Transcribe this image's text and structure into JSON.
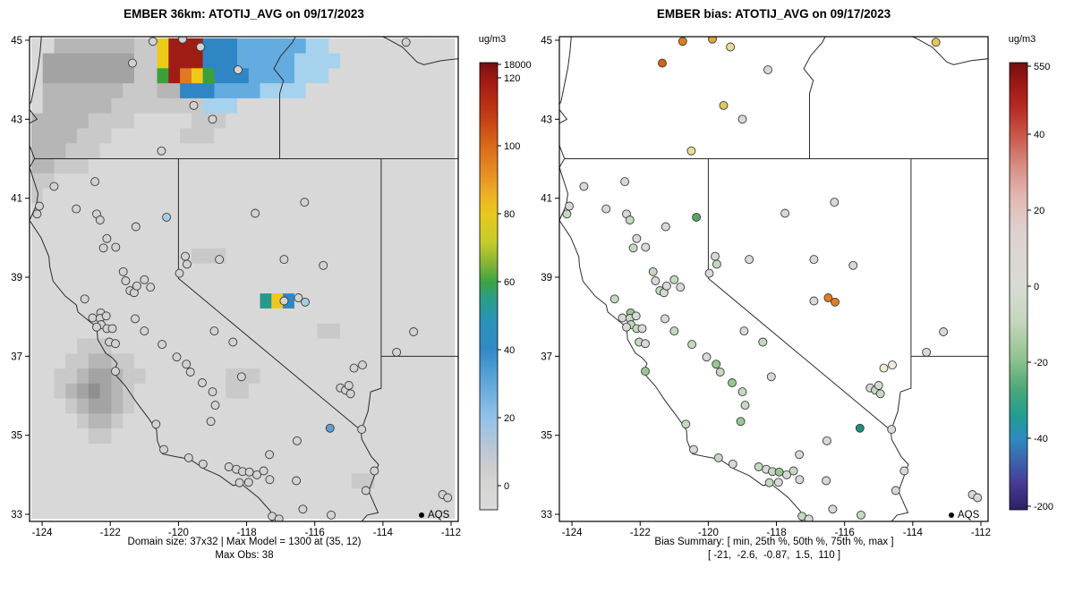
{
  "left": {
    "title": "EMBER 36km: ATOTIJ_AVG on 09/17/2023",
    "caption1": "Domain size: 37x32 | Max Model = 1300 at (35, 12)",
    "caption2": "Max Obs: 38",
    "colorbar_label": "ug/m3",
    "legend_label": "AQS"
  },
  "right": {
    "title": "EMBER bias: ATOTIJ_AVG on 09/17/2023",
    "caption1": "Bias Summary: [ min, 25th %, 50th %, 75th %, max ]",
    "caption2": "[ -21,  -2.6,  -0.87,  1.5,  110 ]",
    "colorbar_label": "ug/m3",
    "legend_label": "AQS"
  },
  "point_colors": {
    "g0": "#d8d8d8",
    "gn1": "#c5d9c0",
    "gn2": "#98c794",
    "gn3": "#55a56b",
    "gn4": "#1f8f80",
    "y0": "#edeada",
    "y1": "#e7dc96",
    "y2": "#e2c758",
    "o2": "#e2a243",
    "o3": "#df7f22",
    "o4": "#cd6512",
    "lb": "#a9cde6",
    "lB": "#5f9fcb"
  },
  "sites": [
    [
      -120.75,
      44.97,
      "o3"
    ],
    [
      -119.88,
      45.03,
      "o2"
    ],
    [
      -121.35,
      44.42,
      "o4"
    ],
    [
      -119.35,
      44.83,
      "y1"
    ],
    [
      -113.32,
      44.95,
      "y2"
    ],
    [
      -118.25,
      44.25,
      "g0"
    ],
    [
      -119.55,
      43.35,
      "y2"
    ],
    [
      -119.0,
      43.0,
      "g0"
    ],
    [
      -120.5,
      42.2,
      "y1"
    ],
    [
      -122.45,
      41.42,
      "g0"
    ],
    [
      -123.65,
      41.3,
      "g0"
    ],
    [
      -124.08,
      40.8,
      "g0"
    ],
    [
      -124.15,
      40.6,
      "gn1"
    ],
    [
      -123.0,
      40.73,
      "g0"
    ],
    [
      -122.4,
      40.6,
      "g0"
    ],
    [
      -122.3,
      40.45,
      "gn1"
    ],
    [
      -121.25,
      40.28,
      "g0"
    ],
    [
      -120.35,
      40.52,
      "gn3",
      "lb"
    ],
    [
      -117.75,
      40.62,
      "g0"
    ],
    [
      -116.3,
      40.9,
      "g0"
    ],
    [
      -122.1,
      39.98,
      "g0"
    ],
    [
      -122.2,
      39.74,
      "gn1"
    ],
    [
      -121.84,
      39.76,
      "g0"
    ],
    [
      -121.62,
      39.14,
      "gn1"
    ],
    [
      -121.55,
      38.91,
      "g0"
    ],
    [
      -121.42,
      38.66,
      "gn1"
    ],
    [
      -121.3,
      38.61,
      "g0"
    ],
    [
      -121.22,
      38.78,
      "g0"
    ],
    [
      -121.0,
      38.94,
      "gn1"
    ],
    [
      -120.82,
      38.75,
      "g0"
    ],
    [
      -119.97,
      39.1,
      "g0"
    ],
    [
      -119.8,
      39.53,
      "g0"
    ],
    [
      -119.75,
      39.33,
      "gn1"
    ],
    [
      -118.8,
      39.45,
      "g0"
    ],
    [
      -116.9,
      39.45,
      "g0"
    ],
    [
      -115.75,
      39.3,
      "g0"
    ],
    [
      -122.75,
      38.45,
      "gn1"
    ],
    [
      -122.52,
      37.97,
      "g0"
    ],
    [
      -122.28,
      38.1,
      "gn2"
    ],
    [
      -122.3,
      37.96,
      "gn1"
    ],
    [
      -122.12,
      38.02,
      "g0"
    ],
    [
      -122.27,
      37.8,
      "gn1"
    ],
    [
      -122.4,
      37.74,
      "g0"
    ],
    [
      -122.1,
      37.7,
      "gn1"
    ],
    [
      -121.94,
      37.7,
      "g0"
    ],
    [
      -122.03,
      37.36,
      "gn1"
    ],
    [
      -121.85,
      37.32,
      "g0"
    ],
    [
      -121.85,
      36.62,
      "gn2"
    ],
    [
      -121.27,
      37.95,
      "g0"
    ],
    [
      -121.0,
      37.64,
      "gn1"
    ],
    [
      -120.48,
      37.3,
      "gn1"
    ],
    [
      -120.05,
      36.98,
      "g0"
    ],
    [
      -119.77,
      36.8,
      "gn2"
    ],
    [
      -119.65,
      36.6,
      "gn1"
    ],
    [
      -119.3,
      36.33,
      "gn2"
    ],
    [
      -119.0,
      36.1,
      "gn1"
    ],
    [
      -118.92,
      35.76,
      "gn1"
    ],
    [
      -119.05,
      35.35,
      "gn2"
    ],
    [
      -118.95,
      37.64,
      "g0"
    ],
    [
      -118.4,
      37.36,
      "gn1"
    ],
    [
      -118.15,
      36.48,
      "g0"
    ],
    [
      -116.9,
      38.4,
      "g0"
    ],
    [
      -116.48,
      38.48,
      "o3"
    ],
    [
      -116.28,
      38.37,
      "o3",
      "lb"
    ],
    [
      -114.6,
      36.78,
      "y0"
    ],
    [
      -114.85,
      36.7,
      "y0"
    ],
    [
      -113.6,
      37.1,
      "g0"
    ],
    [
      -113.1,
      37.62,
      "g0"
    ],
    [
      -115.25,
      36.2,
      "g0"
    ],
    [
      -115.1,
      36.14,
      "gn1"
    ],
    [
      -115.0,
      36.26,
      "g0"
    ],
    [
      -114.95,
      36.05,
      "gn1"
    ],
    [
      -115.55,
      35.18,
      "gn4",
      "lB"
    ],
    [
      -114.62,
      35.15,
      "g0"
    ],
    [
      -117.33,
      34.51,
      "g0"
    ],
    [
      -116.52,
      34.86,
      "g0"
    ],
    [
      -120.66,
      35.28,
      "gn1"
    ],
    [
      -120.43,
      34.64,
      "g0"
    ],
    [
      -119.7,
      34.43,
      "gn1"
    ],
    [
      -119.28,
      34.27,
      "g0"
    ],
    [
      -118.52,
      34.2,
      "gn1"
    ],
    [
      -118.3,
      34.14,
      "g0"
    ],
    [
      -118.12,
      34.08,
      "gn1"
    ],
    [
      -117.92,
      34.07,
      "gn2"
    ],
    [
      -117.7,
      34.0,
      "g0"
    ],
    [
      -117.5,
      34.1,
      "gn1"
    ],
    [
      -117.32,
      33.88,
      "g0"
    ],
    [
      -118.21,
      33.8,
      "gn1"
    ],
    [
      -117.94,
      33.81,
      "g0"
    ],
    [
      -116.54,
      33.85,
      "g0"
    ],
    [
      -117.25,
      32.95,
      "gn1"
    ],
    [
      -117.05,
      32.88,
      "g0"
    ],
    [
      -116.35,
      33.13,
      "g0"
    ],
    [
      -115.52,
      32.98,
      "gn1"
    ],
    [
      -114.5,
      33.6,
      "g0"
    ],
    [
      -114.25,
      34.1,
      "g0"
    ],
    [
      -112.25,
      33.5,
      "g0"
    ],
    [
      -112.1,
      33.42,
      "g0"
    ]
  ],
  "basemap": {
    "outlines": [
      [
        [
          -124.0,
          45.3
        ],
        [
          -124.06,
          44.7
        ],
        [
          -124.12,
          44.3
        ],
        [
          -124.32,
          43.45
        ],
        [
          -124.42,
          43.3
        ],
        [
          -124.15,
          43.0
        ],
        [
          -124.5,
          42.84
        ],
        [
          -124.4,
          42.4
        ],
        [
          -124.22,
          42.0
        ],
        [
          -124.37,
          41.78
        ],
        [
          -124.12,
          41.12
        ],
        [
          -124.17,
          40.82
        ],
        [
          -124.37,
          40.44
        ],
        [
          -124.03,
          40.0
        ],
        [
          -123.8,
          39.52
        ],
        [
          -123.78,
          39.28
        ],
        [
          -123.68,
          38.9
        ],
        [
          -123.32,
          38.52
        ],
        [
          -123.0,
          38.3
        ],
        [
          -122.95,
          38.12
        ],
        [
          -122.52,
          37.82
        ],
        [
          -122.4,
          37.78
        ],
        [
          -122.37,
          37.43
        ],
        [
          -122.14,
          37.08
        ],
        [
          -121.94,
          36.96
        ],
        [
          -121.8,
          36.82
        ],
        [
          -121.9,
          36.58
        ],
        [
          -121.55,
          36.24
        ],
        [
          -121.27,
          35.88
        ],
        [
          -120.88,
          35.43
        ],
        [
          -120.64,
          35.13
        ],
        [
          -120.62,
          34.86
        ],
        [
          -120.47,
          34.53
        ],
        [
          -120.08,
          34.46
        ],
        [
          -119.68,
          34.4
        ],
        [
          -119.22,
          34.14
        ],
        [
          -118.8,
          33.98
        ],
        [
          -118.4,
          33.73
        ],
        [
          -118.14,
          33.76
        ],
        [
          -117.65,
          33.42
        ],
        [
          -117.3,
          33.08
        ],
        [
          -117.25,
          32.8
        ],
        [
          -117.12,
          32.55
        ]
      ],
      [
        [
          -117.12,
          32.55
        ],
        [
          -114.72,
          32.72
        ]
      ],
      [
        [
          -114.72,
          32.72
        ],
        [
          -114.46,
          32.98
        ],
        [
          -114.14,
          33.04
        ],
        [
          -114.42,
          33.58
        ],
        [
          -114.13,
          34.26
        ],
        [
          -114.34,
          34.46
        ],
        [
          -114.62,
          34.9
        ],
        [
          -114.64,
          35.12
        ],
        [
          -114.44,
          35.6
        ],
        [
          -114.36,
          36.1
        ],
        [
          -114.05,
          36.19
        ],
        [
          -114.05,
          42.0
        ]
      ],
      [
        [
          -114.05,
          37.0
        ],
        [
          -111.3,
          37.0
        ]
      ],
      [
        [
          -124.22,
          42.0
        ],
        [
          -111.3,
          42.0
        ]
      ],
      [
        [
          -120.0,
          42.0
        ],
        [
          -120.0,
          38.97
        ],
        [
          -114.64,
          35.12
        ]
      ],
      [
        [
          -117.03,
          42.0
        ],
        [
          -117.03,
          43.65
        ],
        [
          -116.92,
          43.98
        ],
        [
          -117.2,
          44.28
        ],
        [
          -117.0,
          44.6
        ],
        [
          -116.65,
          44.95
        ],
        [
          -116.45,
          45.3
        ]
      ],
      [
        [
          -114.6,
          45.3
        ],
        [
          -113.9,
          45.05
        ],
        [
          -113.42,
          44.82
        ],
        [
          -113.0,
          44.45
        ],
        [
          -112.8,
          44.38
        ],
        [
          -112.3,
          44.48
        ],
        [
          -111.7,
          44.54
        ],
        [
          -111.3,
          44.5
        ]
      ]
    ]
  },
  "chart_data": [
    {
      "type": "heatmap",
      "title": "EMBER 36km: ATOTIJ_AVG on 09/17/2023",
      "xlabel": "",
      "ylabel": "",
      "xlim": [
        -124.37,
        -111.79
      ],
      "ylim": [
        32.82,
        45.09
      ],
      "x_ticks": [
        -124,
        -122,
        -120,
        -118,
        -116,
        -114,
        -112
      ],
      "y_ticks": [
        33,
        35,
        37,
        39,
        41,
        43,
        45
      ],
      "domain_size": "37x32",
      "max_model": 1300,
      "max_model_at": "(35, 12)",
      "max_obs": 38,
      "point_default": "#d2d2d2",
      "grid": {
        "ncols": 37,
        "nrows": 32,
        "lon0": -124.32,
        "lat0": 45.05,
        "dlon": 0.3357,
        "dlat": 0.38,
        "palette": {
          ".": "#d8d8d8",
          "1": "#c9c9c9",
          "2": "#b6b6b6",
          "3": "#a3a3a3",
          "4": "#8f8f8f",
          "c": "#a6d2ee",
          "b": "#64abe0",
          "B": "#2f86c4",
          "t": "#27998a",
          "g": "#3ba03b",
          "y": "#eec919",
          "o": "#e07a1e",
          "r": "#c23418",
          "R": "#9e1d15"
        },
        "rows": [
          "..222222211yRRRBBBbbbbbbcc...........",
          ".3333333311yRRRBBBbbbbbcccc..........",
          ".3333333311gRoygBBBbbbbccc...........",
          ".222222211122BBBbbbbcccc.............",
          ".22222211111111ccc...................",
          "222221111.....111....................",
          "2222111......111.....................",
          "222111...............................",
          "22111................................",
          "11...................................",
          "1....................................",
          ".....................................",
          ".....................................",
          ".....................................",
          "..............111....................",
          ".....................................",
          ".....................................",
          "....................tyB..............",
          ".....................................",
          ".........................11..........",
          "....111..............................",
          "...112211............................",
          "..11233211.......111.................",
          "..1234321........11..................",
          "...123321............................",
          "....1221.............................",
          ".....11..............................",
          ".....................................",
          ".....................................",
          "............................11.......",
          ".....................................",
          "....................................."
        ]
      },
      "colorbar": {
        "label": "ug/m3",
        "ticks": [
          [
            "18000",
            0.004
          ],
          [
            "120",
            0.034
          ],
          [
            "100",
            0.186
          ],
          [
            "80",
            0.338
          ],
          [
            "60",
            0.49
          ],
          [
            "40",
            0.642
          ],
          [
            "20",
            0.794
          ],
          [
            "0",
            0.946
          ]
        ],
        "stops": [
          [
            0.0,
            "#701010"
          ],
          [
            0.02,
            "#8c1712"
          ],
          [
            0.05,
            "#a81d14"
          ],
          [
            0.12,
            "#c13d15"
          ],
          [
            0.186,
            "#d96a1a"
          ],
          [
            0.26,
            "#e89624"
          ],
          [
            0.3,
            "#ecb424"
          ],
          [
            0.338,
            "#e8c81e"
          ],
          [
            0.4,
            "#c8cc2a"
          ],
          [
            0.45,
            "#84b436"
          ],
          [
            0.49,
            "#3da344"
          ],
          [
            0.53,
            "#2a9d8a"
          ],
          [
            0.58,
            "#2b93b8"
          ],
          [
            0.642,
            "#3389c6"
          ],
          [
            0.7,
            "#56a2d6"
          ],
          [
            0.794,
            "#92c2e8"
          ],
          [
            0.86,
            "#b7c6d6"
          ],
          [
            0.9,
            "#ccccd0"
          ],
          [
            0.946,
            "#d6d6d4"
          ],
          [
            1.0,
            "#dadada"
          ]
        ]
      },
      "legend_label": "AQS"
    },
    {
      "type": "scatter",
      "title": "EMBER bias: ATOTIJ_AVG on 09/17/2023",
      "xlabel": "",
      "ylabel": "",
      "xlim": [
        -124.37,
        -111.79
      ],
      "ylim": [
        32.82,
        45.09
      ],
      "x_ticks": [
        -124,
        -122,
        -120,
        -118,
        -116,
        -114,
        -112
      ],
      "y_ticks": [
        33,
        35,
        37,
        39,
        41,
        43,
        45
      ],
      "bias_summary": {
        "min": -21,
        "p25": -2.6,
        "p50": -0.87,
        "p75": 1.5,
        "max": 110
      },
      "colorbar": {
        "label": "ug/m3",
        "ticks": [
          [
            "550",
            0.008
          ],
          [
            "40",
            0.16
          ],
          [
            "20",
            0.33
          ],
          [
            "0",
            0.5
          ],
          [
            "-20",
            0.67
          ],
          [
            "-40",
            0.84
          ],
          [
            "-200",
            0.992
          ]
        ],
        "stops": [
          [
            0.0,
            "#701010"
          ],
          [
            0.04,
            "#971713"
          ],
          [
            0.1,
            "#b62a22"
          ],
          [
            0.16,
            "#c85548"
          ],
          [
            0.23,
            "#d88c82"
          ],
          [
            0.3,
            "#e2b8b2"
          ],
          [
            0.38,
            "#ded2ce"
          ],
          [
            0.5,
            "#d9dbd6"
          ],
          [
            0.58,
            "#c4d6bc"
          ],
          [
            0.66,
            "#92c48e"
          ],
          [
            0.73,
            "#4aa878"
          ],
          [
            0.79,
            "#229d90"
          ],
          [
            0.84,
            "#2b8cbe"
          ],
          [
            0.89,
            "#3c64ad"
          ],
          [
            0.94,
            "#463b96"
          ],
          [
            1.0,
            "#2e1f63"
          ]
        ]
      },
      "legend_label": "AQS"
    }
  ]
}
